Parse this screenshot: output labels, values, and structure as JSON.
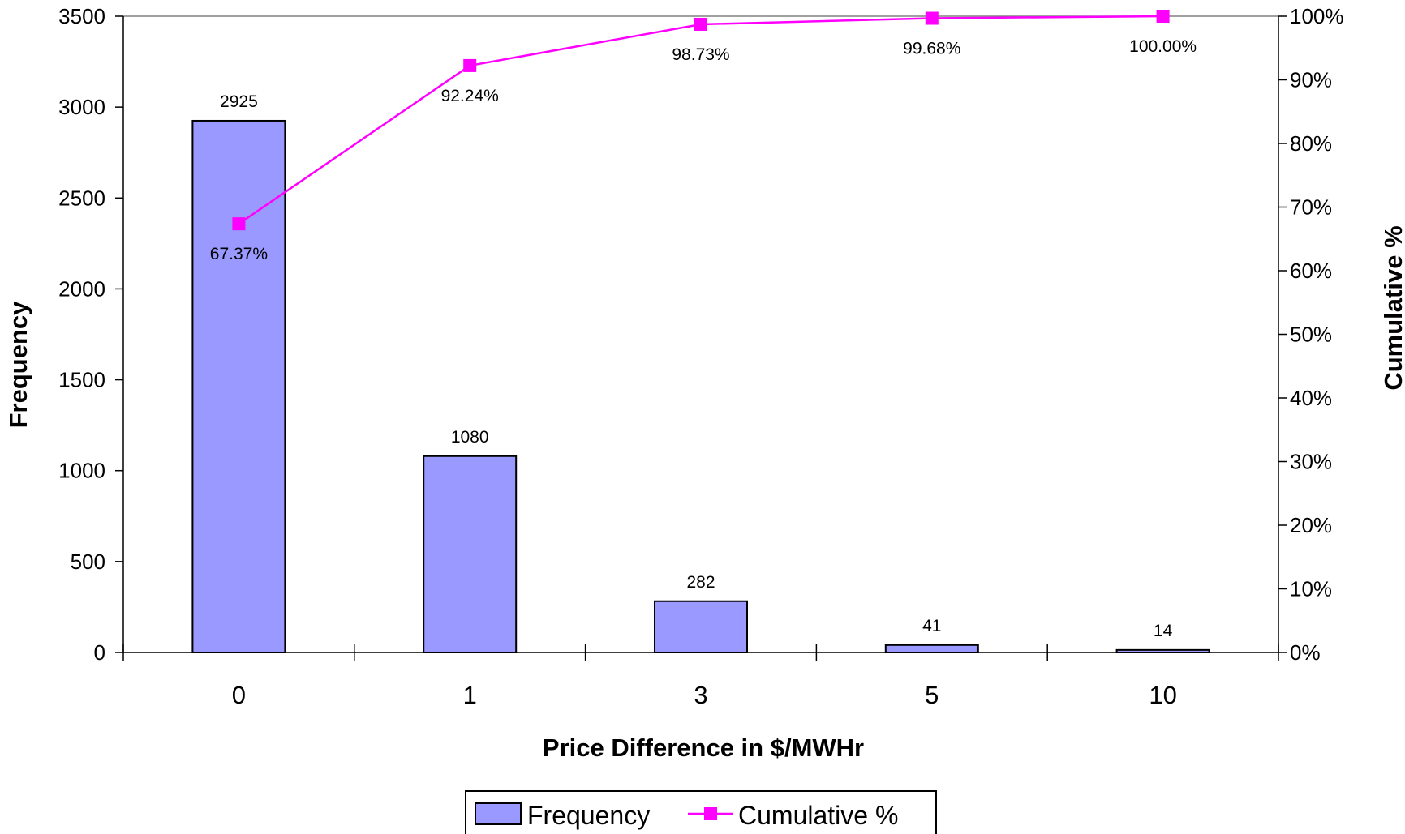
{
  "chart_data": {
    "type": "bar",
    "categories": [
      "0",
      "1",
      "3",
      "5",
      "10"
    ],
    "series": [
      {
        "name": "Frequency",
        "type": "bar",
        "axis": "left",
        "values": [
          2925,
          1080,
          282,
          41,
          14
        ],
        "labels": [
          "2925",
          "1080",
          "282",
          "41",
          "14"
        ]
      },
      {
        "name": "Cumulative %",
        "type": "line",
        "axis": "right",
        "values": [
          67.37,
          92.24,
          98.73,
          99.68,
          100.0
        ],
        "labels": [
          "67.37%",
          "92.24%",
          "98.73%",
          "99.68%",
          "100.00%"
        ]
      }
    ],
    "xlabel": "Price Difference in $/MWHr",
    "ylabel": "Frequency",
    "y2label": "Cumulative %",
    "ylim": [
      0,
      3500
    ],
    "y2lim": [
      0,
      100
    ],
    "yticks": [
      "0",
      "500",
      "1000",
      "1500",
      "2000",
      "2500",
      "3000",
      "3500"
    ],
    "y2ticks": [
      "0%",
      "10%",
      "20%",
      "30%",
      "40%",
      "50%",
      "60%",
      "70%",
      "80%",
      "90%",
      "100%"
    ],
    "grid": false,
    "legend_position": "bottom",
    "colors": {
      "bar_fill": "#9999ff",
      "bar_stroke": "#000000",
      "line": "#ff00ff",
      "marker": "#ff00ff"
    }
  }
}
